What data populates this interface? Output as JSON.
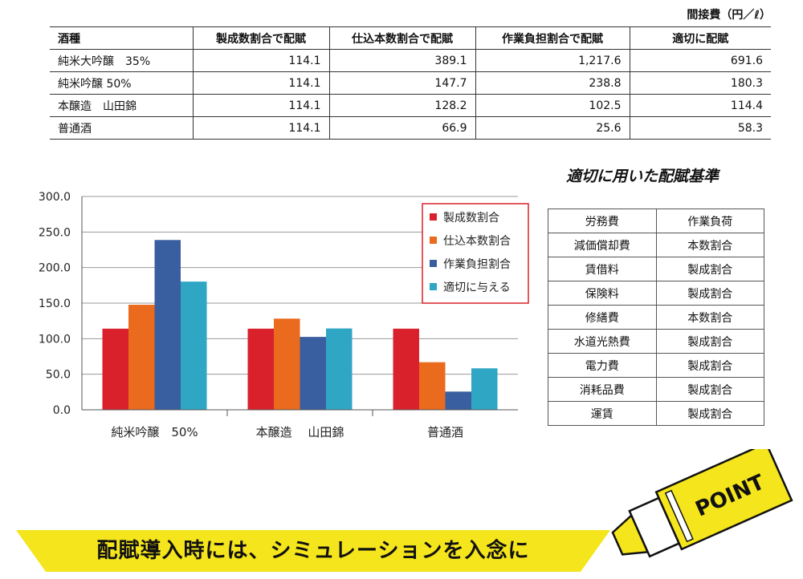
{
  "unit_label": "間接費（円／ℓ）",
  "cost_table": {
    "headers": [
      "酒種",
      "製成数割合で配賦",
      "仕込本数割合で配賦",
      "作業負担割合で配賦",
      "適切に配賦"
    ],
    "rows": [
      [
        "純米大吟醸　35%",
        "114.1",
        "389.1",
        "1,217.6",
        "691.6"
      ],
      [
        "純米吟醸 50%",
        "114.1",
        "147.7",
        "238.8",
        "180.3"
      ],
      [
        "本醸造　山田錦",
        "114.1",
        "128.2",
        "102.5",
        "114.4"
      ],
      [
        "普通酒",
        "114.1",
        "66.9",
        "25.6",
        "58.3"
      ]
    ]
  },
  "chart_data": {
    "type": "bar",
    "categories": [
      "純米吟醸　50%",
      "本醸造　 山田錦",
      "普通酒"
    ],
    "series": [
      {
        "name": "製成数割合",
        "values": [
          114.1,
          114.1,
          114.1
        ],
        "color": "#d9212c"
      },
      {
        "name": "仕込本数割合",
        "values": [
          147.7,
          128.2,
          66.9
        ],
        "color": "#ea6a1e"
      },
      {
        "name": "作業負担割合",
        "values": [
          238.8,
          102.5,
          25.6
        ],
        "color": "#3a5fa0"
      },
      {
        "name": "適切に与える",
        "values": [
          180.3,
          114.4,
          58.3
        ],
        "color": "#2ea6c4"
      }
    ],
    "ylim": [
      0,
      300
    ],
    "yticks": [
      "0.0",
      "50.0",
      "100.0",
      "150.0",
      "200.0",
      "250.0",
      "300.0"
    ],
    "grid": true,
    "legend": "top-right",
    "legend_border_color": "#d9212c"
  },
  "criteria": {
    "title": "適切に用いた配賦基準",
    "rows": [
      [
        "労務費",
        "作業負荷"
      ],
      [
        "減価償却費",
        "本数割合"
      ],
      [
        "賃借料",
        "製成割合"
      ],
      [
        "保険料",
        "製成割合"
      ],
      [
        "修繕費",
        "本数割合"
      ],
      [
        "水道光熱費",
        "製成割合"
      ],
      [
        "電力費",
        "製成割合"
      ],
      [
        "消耗品費",
        "製成割合"
      ],
      [
        "運賃",
        "製成割合"
      ]
    ]
  },
  "banner": {
    "text": "配賦導入時には、シミュレーションを入念に",
    "color": "#f5e51c"
  },
  "marker": {
    "label": "POINT",
    "color": "#f5e51c"
  }
}
